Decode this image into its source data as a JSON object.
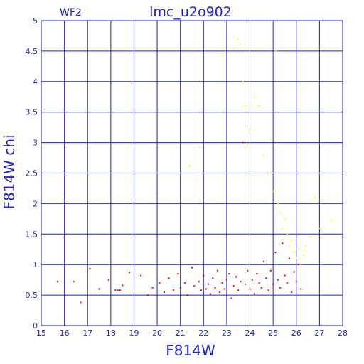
{
  "chart_data": {
    "type": "scatter",
    "title": "lmc_u2o902",
    "corner_label": "WF2",
    "xlabel": "F814W",
    "ylabel": "F814W  chi",
    "xlim": [
      15,
      28
    ],
    "ylim": [
      0,
      5
    ],
    "x_ticks": [
      "15",
      "16",
      "17",
      "18",
      "19",
      "20",
      "21",
      "22",
      "23",
      "24",
      "25",
      "26",
      "27",
      "28"
    ],
    "y_ticks": [
      "0",
      "0.5",
      "1",
      "1.5",
      "2",
      "2.5",
      "3",
      "3.5",
      "4",
      "4.5",
      "5"
    ],
    "grid": true,
    "colors": {
      "axis": "#1f1fbf",
      "grid": "#2323b0",
      "series_red": "#ff0000",
      "series_yellow": "#ffff00"
    },
    "series": [
      {
        "color": "red",
        "points": [
          [
            15.7,
            0.72
          ],
          [
            16.4,
            0.72
          ],
          [
            16.7,
            0.38
          ],
          [
            17.1,
            0.93
          ],
          [
            17.5,
            0.6
          ],
          [
            17.9,
            0.75
          ],
          [
            18.2,
            0.58
          ],
          [
            18.3,
            0.58
          ],
          [
            18.4,
            0.58
          ],
          [
            18.5,
            0.66
          ],
          [
            18.8,
            0.87
          ],
          [
            19.3,
            0.82
          ],
          [
            19.6,
            0.5
          ],
          [
            19.8,
            0.62
          ],
          [
            20.1,
            0.7
          ],
          [
            20.3,
            0.55
          ],
          [
            20.5,
            0.78
          ],
          [
            20.7,
            0.58
          ],
          [
            20.9,
            0.85
          ],
          [
            21.0,
            0.62
          ],
          [
            21.2,
            0.7
          ],
          [
            21.3,
            0.5
          ],
          [
            21.5,
            0.95
          ],
          [
            21.6,
            0.65
          ],
          [
            21.8,
            0.72
          ],
          [
            21.9,
            0.58
          ],
          [
            22.0,
            0.82
          ],
          [
            22.1,
            0.6
          ],
          [
            22.2,
            0.68
          ],
          [
            22.3,
            0.52
          ],
          [
            22.4,
            0.78
          ],
          [
            22.5,
            0.62
          ],
          [
            22.6,
            0.9
          ],
          [
            22.7,
            0.55
          ],
          [
            22.8,
            0.7
          ],
          [
            22.9,
            0.6
          ],
          [
            23.0,
            0.75
          ],
          [
            23.1,
            0.85
          ],
          [
            23.2,
            0.45
          ],
          [
            23.3,
            0.65
          ],
          [
            23.4,
            0.8
          ],
          [
            23.5,
            0.58
          ],
          [
            23.6,
            0.72
          ],
          [
            23.7,
            3.0
          ],
          [
            23.8,
            0.68
          ],
          [
            23.9,
            0.9
          ],
          [
            24.0,
            0.6
          ],
          [
            24.1,
            0.75
          ],
          [
            24.2,
            0.52
          ],
          [
            24.3,
            0.85
          ],
          [
            24.4,
            0.7
          ],
          [
            24.5,
            0.62
          ],
          [
            24.6,
            1.05
          ],
          [
            24.7,
            0.78
          ],
          [
            24.8,
            0.58
          ],
          [
            24.9,
            0.9
          ],
          [
            25.0,
            0.68
          ],
          [
            25.1,
            1.2
          ],
          [
            25.2,
            0.75
          ],
          [
            25.3,
            0.62
          ],
          [
            25.4,
            1.35
          ],
          [
            25.5,
            0.82
          ],
          [
            25.6,
            0.7
          ],
          [
            25.7,
            1.1
          ],
          [
            25.8,
            0.55
          ],
          [
            25.9,
            0.88
          ],
          [
            26.0,
            0.72
          ],
          [
            26.1,
            1.0
          ],
          [
            26.2,
            0.6
          ]
        ]
      },
      {
        "color": "yellow",
        "points": [
          [
            23.3,
            4.55
          ],
          [
            23.5,
            4.7
          ],
          [
            23.6,
            4.6
          ],
          [
            23.7,
            4.0
          ],
          [
            23.8,
            3.6
          ],
          [
            24.0,
            3.2
          ],
          [
            24.2,
            3.75
          ],
          [
            24.4,
            3.6
          ],
          [
            24.6,
            2.8
          ],
          [
            24.8,
            2.5
          ],
          [
            24.9,
            3.05
          ],
          [
            25.0,
            2.2
          ],
          [
            25.1,
            4.5
          ],
          [
            25.2,
            2.0
          ],
          [
            25.3,
            1.85
          ],
          [
            25.4,
            1.6
          ],
          [
            25.5,
            1.75
          ],
          [
            25.6,
            1.5
          ],
          [
            25.7,
            1.3
          ],
          [
            25.8,
            1.4
          ],
          [
            25.9,
            1.2
          ],
          [
            26.0,
            1.1
          ],
          [
            26.1,
            1.25
          ],
          [
            26.2,
            1.0
          ],
          [
            26.3,
            1.15
          ],
          [
            26.4,
            1.3
          ],
          [
            26.6,
            1.45
          ],
          [
            26.8,
            2.1
          ],
          [
            27.0,
            1.6
          ],
          [
            27.5,
            1.72
          ],
          [
            22.8,
            4.45
          ],
          [
            21.4,
            2.62
          ],
          [
            23.9,
            2.95
          ]
        ]
      }
    ]
  }
}
